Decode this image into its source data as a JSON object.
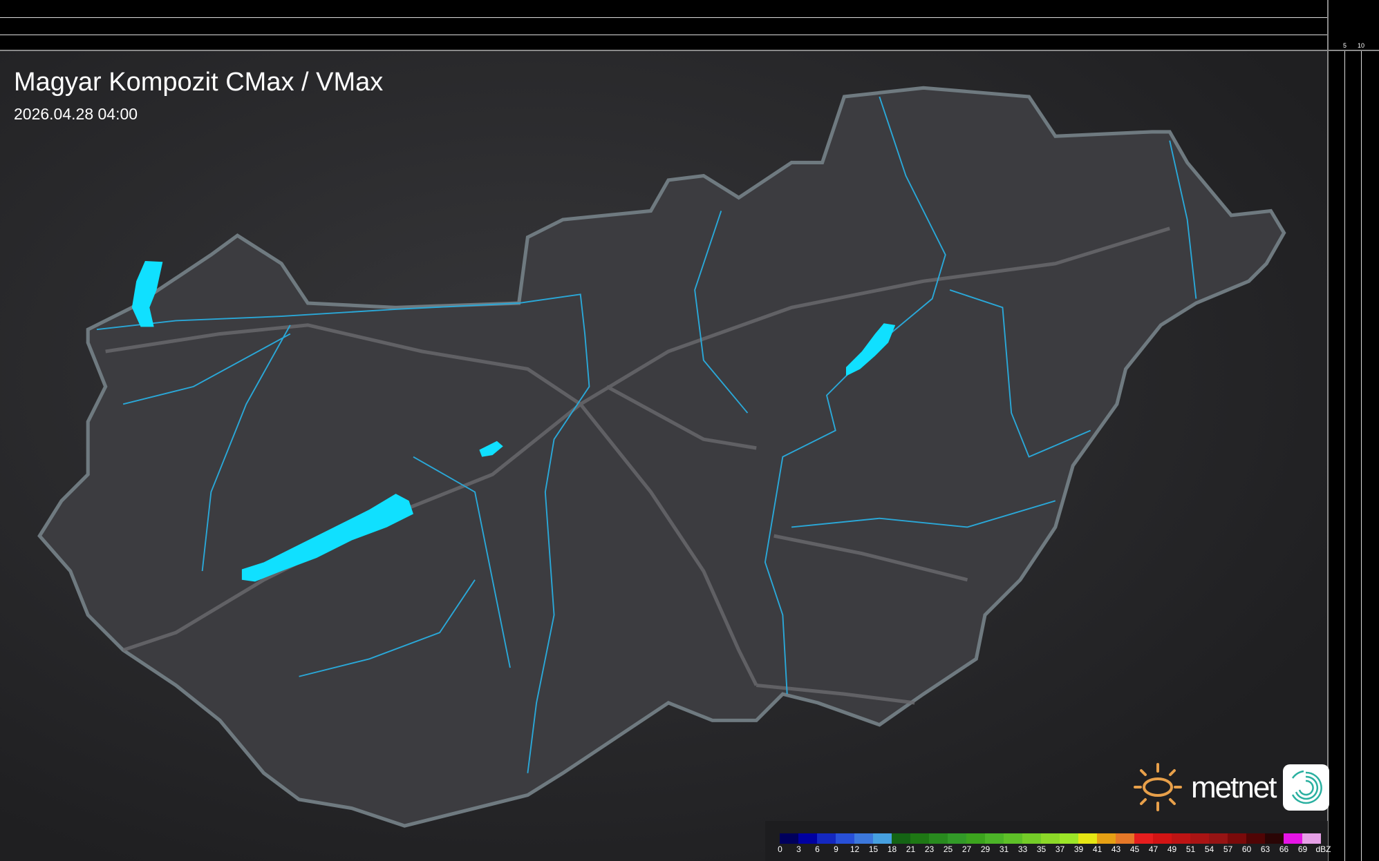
{
  "header": {
    "title": "Magyar Kompozit CMax / VMax",
    "timestamp": "2026.04.28 04:00"
  },
  "scale_ticks": {
    "vertical": [
      "10",
      "5"
    ],
    "horizontal": [
      "5",
      "10"
    ]
  },
  "brand": {
    "logo_text": "metnet",
    "sun_color": "#e8a04a"
  },
  "legend": {
    "unit": "dBZ",
    "labels": [
      "0",
      "3",
      "6",
      "9",
      "12",
      "15",
      "18",
      "21",
      "23",
      "25",
      "27",
      "29",
      "31",
      "33",
      "35",
      "37",
      "39",
      "41",
      "43",
      "45",
      "47",
      "49",
      "51",
      "54",
      "57",
      "60",
      "63",
      "66",
      "69"
    ],
    "colors": [
      "#00005c",
      "#0000a0",
      "#1428c0",
      "#2850d8",
      "#3c78dc",
      "#46a0e0",
      "#146414",
      "#1e7814",
      "#288a1e",
      "#329a28",
      "#3ca41e",
      "#4cb428",
      "#5ec028",
      "#74cc28",
      "#8cd828",
      "#9ce628",
      "#e6e614",
      "#e6a014",
      "#e67828",
      "#e61e1e",
      "#d21414",
      "#be1414",
      "#aa1414",
      "#961414",
      "#7a0a0a",
      "#500505",
      "#2a0505",
      "#e614e6",
      "#e6a0e6",
      "#96e6e6"
    ]
  },
  "map_colors": {
    "water": "#10e0ff",
    "river": "#2aa8d8",
    "country_fill": "#3c3c40",
    "border": "#7a7a80"
  }
}
